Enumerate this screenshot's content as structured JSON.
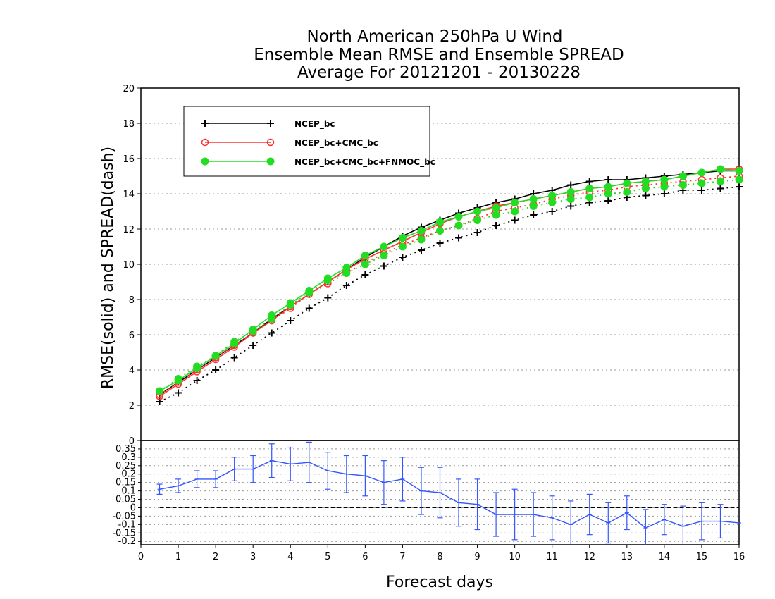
{
  "chart_data": [
    {
      "type": "line",
      "title": [
        "North American 250hPa U Wind",
        "Ensemble Mean RMSE and Ensemble SPREAD",
        "Average For 20121201 - 20130228"
      ],
      "ylabel": "RMSE(solid)  and  SPREAD(dash)",
      "xlim": [
        0,
        16
      ],
      "ylim": [
        0,
        20
      ],
      "yticks": [
        0,
        2,
        4,
        6,
        8,
        10,
        12,
        14,
        16,
        18,
        20
      ],
      "ytick_labels": [
        "0",
        "2",
        "4",
        "6",
        "8",
        "10",
        "12",
        "14",
        "16",
        "18",
        "20"
      ],
      "grid": true,
      "legend_position": "top-left",
      "x": [
        0.5,
        1,
        1.5,
        2,
        2.5,
        3,
        3.5,
        4,
        4.5,
        5,
        5.5,
        6,
        6.5,
        7,
        7.5,
        8,
        8.5,
        9,
        9.5,
        10,
        10.5,
        11,
        11.5,
        12,
        12.5,
        13,
        13.5,
        14,
        14.5,
        15,
        15.5,
        16
      ],
      "series": [
        {
          "name": "NCEP_bc",
          "color": "#000000",
          "marker": "plus",
          "rmse": [
            2.6,
            3.3,
            4.0,
            4.7,
            5.4,
            6.1,
            6.9,
            7.6,
            8.3,
            9.0,
            9.7,
            10.4,
            11.0,
            11.6,
            12.1,
            12.5,
            12.9,
            13.2,
            13.5,
            13.7,
            14.0,
            14.2,
            14.5,
            14.7,
            14.8,
            14.8,
            14.9,
            15.0,
            15.1,
            15.2,
            15.3,
            15.3
          ],
          "spread": [
            2.2,
            2.7,
            3.4,
            4.0,
            4.7,
            5.4,
            6.1,
            6.8,
            7.5,
            8.1,
            8.8,
            9.4,
            9.9,
            10.4,
            10.8,
            11.2,
            11.5,
            11.8,
            12.2,
            12.5,
            12.8,
            13.0,
            13.3,
            13.5,
            13.6,
            13.8,
            13.9,
            14.0,
            14.2,
            14.2,
            14.3,
            14.4
          ]
        },
        {
          "name": "NCEP_bc+CMC_bc",
          "color": "#ff3333",
          "marker": "open-circle",
          "rmse": [
            2.5,
            3.2,
            3.9,
            4.6,
            5.3,
            6.1,
            6.8,
            7.6,
            8.3,
            9.0,
            9.7,
            10.3,
            10.8,
            11.3,
            11.8,
            12.3,
            12.7,
            13.0,
            13.3,
            13.5,
            13.7,
            13.9,
            14.1,
            14.3,
            14.4,
            14.6,
            14.7,
            14.8,
            15.0,
            15.2,
            15.4,
            15.4
          ],
          "spread": [
            2.6,
            3.3,
            4.0,
            4.7,
            5.4,
            6.1,
            6.8,
            7.5,
            8.3,
            8.9,
            9.5,
            10.1,
            10.6,
            11.1,
            11.5,
            11.9,
            12.2,
            12.6,
            13.0,
            13.2,
            13.4,
            13.7,
            13.9,
            14.1,
            14.2,
            14.4,
            14.5,
            14.6,
            14.7,
            14.8,
            14.9,
            15.0
          ]
        },
        {
          "name": "NCEP_bc+CMC_bc+FNMOC_bc",
          "color": "#22dd22",
          "marker": "filled-circle",
          "rmse": [
            2.8,
            3.4,
            4.1,
            4.8,
            5.5,
            6.3,
            7.1,
            7.8,
            8.5,
            9.2,
            9.8,
            10.5,
            11.0,
            11.5,
            11.9,
            12.4,
            12.7,
            13.0,
            13.2,
            13.5,
            13.7,
            13.9,
            14.1,
            14.3,
            14.4,
            14.6,
            14.7,
            14.8,
            15.0,
            15.2,
            15.4,
            15.3
          ],
          "spread": [
            2.8,
            3.5,
            4.2,
            4.8,
            5.6,
            6.2,
            6.9,
            7.7,
            8.4,
            9.1,
            9.5,
            10.0,
            10.5,
            11.0,
            11.4,
            11.9,
            12.2,
            12.5,
            12.8,
            13.0,
            13.3,
            13.5,
            13.7,
            13.8,
            14.0,
            14.1,
            14.3,
            14.4,
            14.5,
            14.6,
            14.7,
            14.8
          ]
        }
      ]
    },
    {
      "type": "line",
      "xlabel": "Forecast days",
      "xlim": [
        0,
        16
      ],
      "ylim": [
        -0.22,
        0.4
      ],
      "xticks": [
        0,
        1,
        2,
        3,
        4,
        5,
        6,
        7,
        8,
        9,
        10,
        11,
        12,
        13,
        14,
        15,
        16
      ],
      "xtick_labels": [
        "0",
        "1",
        "2",
        "3",
        "4",
        "5",
        "6",
        "7",
        "8",
        "9",
        "10",
        "11",
        "12",
        "13",
        "14",
        "15",
        "16"
      ],
      "yticks": [
        -0.2,
        -0.15,
        -0.1,
        -0.05,
        0,
        0.05,
        0.1,
        0.15,
        0.2,
        0.25,
        0.3,
        0.35
      ],
      "ytick_labels": [
        "-0.2",
        "-0.15",
        "-0.1",
        "-0.05",
        "0",
        "0.05",
        "0.1",
        "0.15",
        "0.2",
        "0.25",
        "0.3",
        "0.35"
      ],
      "grid": true,
      "color": "#3355ff",
      "reference_line": 0,
      "x": [
        0.5,
        1,
        1.5,
        2,
        2.5,
        3,
        3.5,
        4,
        4.5,
        5,
        5.5,
        6,
        6.5,
        7,
        7.5,
        8,
        8.5,
        9,
        9.5,
        10,
        10.5,
        11,
        11.5,
        12,
        12.5,
        13,
        13.5,
        14,
        14.5,
        15,
        15.5,
        16
      ],
      "values": [
        0.11,
        0.13,
        0.17,
        0.17,
        0.23,
        0.23,
        0.28,
        0.26,
        0.27,
        0.22,
        0.2,
        0.19,
        0.15,
        0.17,
        0.1,
        0.09,
        0.03,
        0.02,
        -0.04,
        -0.04,
        -0.04,
        -0.06,
        -0.1,
        -0.04,
        -0.09,
        -0.03,
        -0.12,
        -0.07,
        -0.11,
        -0.08,
        -0.08,
        -0.09
      ],
      "error": [
        0.03,
        0.04,
        0.05,
        0.05,
        0.07,
        0.08,
        0.1,
        0.1,
        0.12,
        0.11,
        0.11,
        0.12,
        0.13,
        0.13,
        0.14,
        0.15,
        0.14,
        0.15,
        0.13,
        0.15,
        0.13,
        0.13,
        0.14,
        0.12,
        0.12,
        0.1,
        0.11,
        0.09,
        0.12,
        0.11,
        0.1,
        0.0
      ]
    }
  ]
}
